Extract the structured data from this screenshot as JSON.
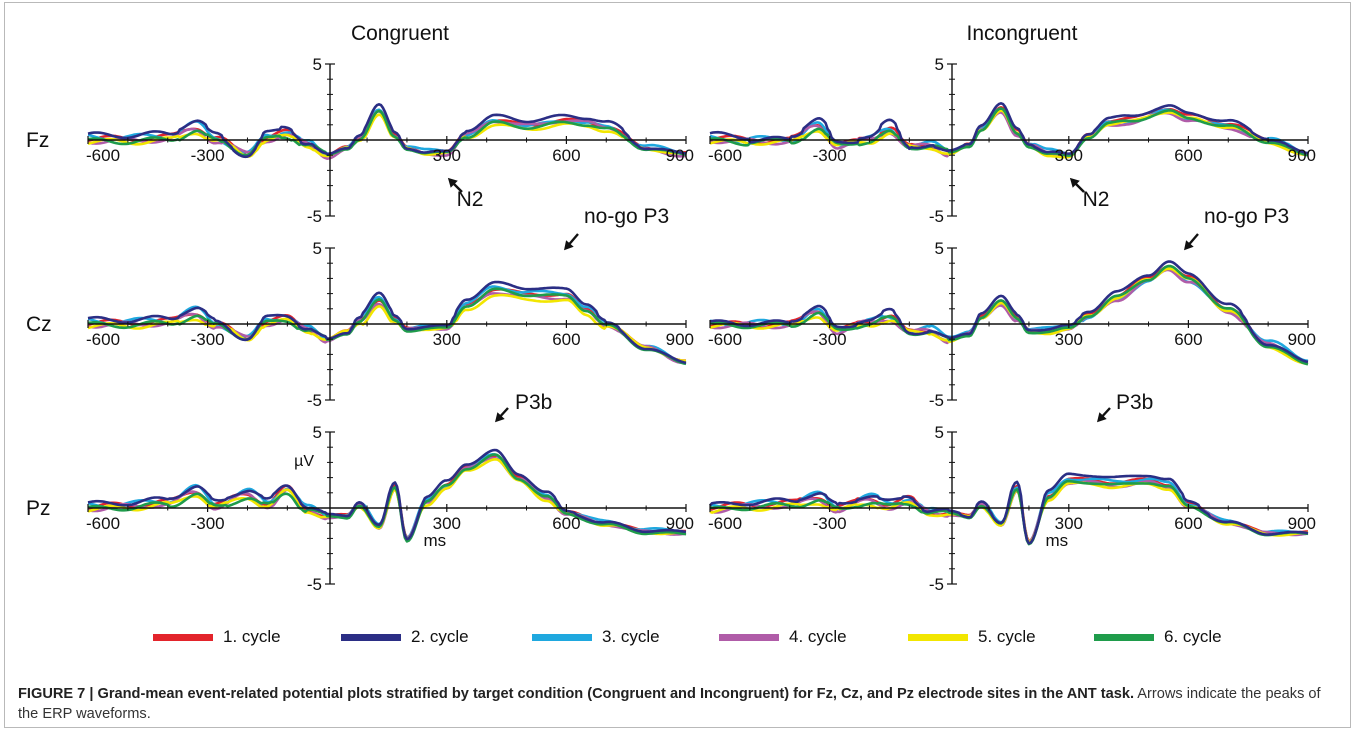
{
  "figure": {
    "caption_bold": "FIGURE 7 | Grand-mean event-related potential plots stratified by target condition (Congruent and Incongruent) for Fz, Cz, and Pz electrode sites in the ANT task.",
    "caption_rest": " Arrows indicate the peaks of the ERP waveforms."
  },
  "colors": {
    "1. cycle": "#e3242b",
    "2. cycle": "#2b2e85",
    "3. cycle": "#1fa8df",
    "4. cycle": "#b05ca8",
    "5. cycle": "#f2e600",
    "6. cycle": "#1f9c4b"
  },
  "legend": [
    {
      "label": "1. cycle",
      "color": "#e3242b"
    },
    {
      "label": "2. cycle",
      "color": "#2b2e85"
    },
    {
      "label": "3. cycle",
      "color": "#1fa8df"
    },
    {
      "label": "4. cycle",
      "color": "#b05ca8"
    },
    {
      "label": "5. cycle",
      "color": "#f2e600"
    },
    {
      "label": "6. cycle",
      "color": "#1f9c4b"
    }
  ],
  "chart_data": {
    "type": "line",
    "columns": [
      "Congruent",
      "Incongruent"
    ],
    "rows": [
      "Fz",
      "Cz",
      "Pz"
    ],
    "x_ticks": [
      -600,
      -300,
      300,
      600,
      900
    ],
    "y_ticks": [
      5,
      -5
    ],
    "xlim": [
      -600,
      900
    ],
    "ylim": [
      -5,
      5
    ],
    "x_unit": "ms",
    "y_unit": "µV",
    "series_names": [
      "1. cycle",
      "2. cycle",
      "3. cycle",
      "4. cycle",
      "5. cycle",
      "6. cycle"
    ],
    "annotations": [
      {
        "text": "N2",
        "column": 0,
        "row": 0
      },
      {
        "text": "N2",
        "column": 1,
        "row": 0
      },
      {
        "text": "no-go P3",
        "column": 0,
        "row": 1
      },
      {
        "text": "no-go P3",
        "column": 1,
        "row": 1
      },
      {
        "text": "P3b",
        "column": 0,
        "row": 2
      },
      {
        "text": "P3b",
        "column": 1,
        "row": 2
      }
    ],
    "panels": [
      {
        "column": "Congruent",
        "row": "Fz",
        "base_x": [
          -600,
          -500,
          -400,
          -330,
          -280,
          -200,
          -150,
          -100,
          -50,
          0,
          50,
          80,
          130,
          170,
          200,
          250,
          300,
          350,
          420,
          500,
          600,
          650,
          700,
          800,
          900
        ],
        "base_y": [
          0.1,
          0.1,
          0.2,
          0.9,
          0.1,
          -0.9,
          0.2,
          0.5,
          -0.2,
          -1.0,
          -0.5,
          0.2,
          2.0,
          0.3,
          -0.5,
          -0.8,
          -0.8,
          0.4,
          1.3,
          1.0,
          1.3,
          1.2,
          0.9,
          -0.5,
          -0.9
        ],
        "offsets": [
          [
            0,
            0,
            0
          ],
          [
            0.1,
            0.8,
            0.5
          ],
          [
            0.05,
            0.3,
            -0.3
          ],
          [
            -0.1,
            -0.4,
            0.2
          ],
          [
            -0.15,
            -0.5,
            -0.4
          ],
          [
            -0.1,
            -0.6,
            -0.2
          ]
        ]
      },
      {
        "column": "Incongruent",
        "row": "Fz",
        "base_x": [
          -600,
          -500,
          -400,
          -330,
          -280,
          -200,
          -150,
          -100,
          -50,
          0,
          50,
          80,
          130,
          170,
          200,
          250,
          300,
          350,
          400,
          450,
          550,
          600,
          700,
          800,
          900
        ],
        "base_y": [
          0.1,
          0.0,
          0.0,
          1.0,
          -0.3,
          0.1,
          0.7,
          -0.4,
          -0.3,
          -0.8,
          -0.3,
          0.8,
          2.1,
          0.5,
          -0.3,
          -0.8,
          -1.0,
          0.3,
          1.2,
          1.3,
          2.0,
          1.5,
          1.0,
          0.0,
          -0.9
        ],
        "offsets": [
          [
            0,
            0.4,
            0.3
          ],
          [
            0.1,
            1.0,
            0.4
          ],
          [
            0.05,
            -0.2,
            -0.4
          ],
          [
            -0.1,
            0.0,
            -0.3
          ],
          [
            -0.15,
            -0.3,
            0.1
          ],
          [
            -0.1,
            -0.5,
            0.0
          ]
        ]
      },
      {
        "column": "Congruent",
        "row": "Cz",
        "base_x": [
          -600,
          -500,
          -400,
          -330,
          -280,
          -200,
          -150,
          -100,
          -50,
          0,
          50,
          80,
          130,
          170,
          200,
          250,
          300,
          350,
          420,
          500,
          600,
          650,
          700,
          800,
          900
        ],
        "base_y": [
          0.1,
          0.1,
          0.2,
          0.8,
          0.0,
          -0.9,
          0.2,
          0.4,
          -0.3,
          -1.0,
          -0.5,
          0.3,
          1.6,
          0.3,
          -0.3,
          -0.2,
          -0.2,
          1.3,
          2.3,
          2.0,
          1.9,
          1.0,
          0.0,
          -1.5,
          -2.5
        ],
        "offsets": [
          [
            0,
            0,
            0
          ],
          [
            0.1,
            0.5,
            0.8
          ],
          [
            0.05,
            0.3,
            0.2
          ],
          [
            -0.1,
            -0.3,
            -0.3
          ],
          [
            -0.15,
            -0.6,
            -0.7
          ],
          [
            -0.1,
            -0.5,
            0.1
          ]
        ]
      },
      {
        "column": "Incongruent",
        "row": "Cz",
        "base_x": [
          -600,
          -500,
          -400,
          -330,
          -280,
          -200,
          -150,
          -100,
          -50,
          0,
          50,
          80,
          130,
          170,
          200,
          250,
          300,
          350,
          420,
          500,
          550,
          600,
          700,
          800,
          900
        ],
        "base_y": [
          0.0,
          0.0,
          0.0,
          0.9,
          -0.4,
          0.2,
          0.5,
          -0.5,
          -0.4,
          -1.0,
          -0.6,
          0.5,
          1.5,
          0.4,
          -0.4,
          -0.4,
          -0.2,
          0.6,
          1.8,
          3.0,
          3.8,
          3.0,
          1.0,
          -1.3,
          -2.5
        ],
        "offsets": [
          [
            0,
            0.2,
            0.2
          ],
          [
            0.1,
            0.6,
            0.5
          ],
          [
            0.05,
            -0.4,
            -0.6
          ],
          [
            -0.1,
            -0.1,
            -0.3
          ],
          [
            -0.15,
            -0.4,
            0.2
          ],
          [
            -0.1,
            -0.2,
            0.2
          ]
        ]
      },
      {
        "column": "Congruent",
        "row": "Pz",
        "base_x": [
          -600,
          -500,
          -400,
          -330,
          -280,
          -200,
          -150,
          -100,
          -50,
          0,
          50,
          80,
          130,
          170,
          200,
          250,
          300,
          350,
          420,
          480,
          550,
          600,
          700,
          800,
          900
        ],
        "base_y": [
          0.1,
          0.2,
          0.4,
          1.2,
          0.2,
          1.0,
          0.3,
          1.3,
          0.0,
          -0.5,
          -0.5,
          0.3,
          -1.2,
          1.4,
          -2.0,
          0.5,
          1.5,
          2.7,
          3.5,
          2.0,
          0.8,
          -0.3,
          -1.0,
          -1.5,
          -1.6
        ],
        "offsets": [
          [
            0,
            0,
            0
          ],
          [
            0.1,
            0.4,
            0.4
          ],
          [
            0.05,
            0.2,
            -0.2
          ],
          [
            -0.1,
            -0.2,
            -0.1
          ],
          [
            -0.15,
            -0.3,
            -0.3
          ],
          [
            -0.1,
            -0.5,
            0.1
          ]
        ]
      },
      {
        "column": "Incongruent",
        "row": "Pz",
        "base_x": [
          -600,
          -500,
          -400,
          -330,
          -280,
          -200,
          -150,
          -100,
          -50,
          0,
          50,
          80,
          130,
          170,
          200,
          250,
          300,
          350,
          420,
          500,
          550,
          600,
          700,
          800,
          900
        ],
        "base_y": [
          0.0,
          0.2,
          0.3,
          0.7,
          0.0,
          0.6,
          0.2,
          0.5,
          -0.2,
          -0.3,
          -0.5,
          0.3,
          -1.0,
          1.3,
          -2.2,
          0.8,
          1.8,
          1.8,
          1.6,
          1.8,
          1.5,
          0.2,
          -0.9,
          -1.6,
          -1.6
        ],
        "offsets": [
          [
            0,
            0.3,
            0.2
          ],
          [
            0.1,
            0.5,
            0.8
          ],
          [
            0.05,
            0.4,
            0.2
          ],
          [
            -0.1,
            -0.2,
            -0.1
          ],
          [
            -0.15,
            -0.4,
            -0.2
          ],
          [
            -0.1,
            -0.3,
            0.0
          ]
        ]
      }
    ]
  }
}
